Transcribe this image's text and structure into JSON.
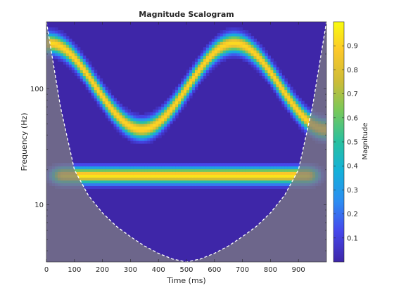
{
  "chart_data": {
    "type": "heatmap",
    "title": "Magnitude Scalogram",
    "xlabel": "Time (ms)",
    "ylabel": "Frequency (Hz)",
    "colorbar_label": "Magnitude",
    "colormap": "parula",
    "xlim": [
      0,
      1000
    ],
    "ylim": [
      3.2,
      380
    ],
    "yscale": "log",
    "clim": [
      0,
      1
    ],
    "x_ticks": [
      0,
      100,
      200,
      300,
      400,
      500,
      600,
      700,
      800,
      900
    ],
    "x_tick_labels": [
      "0",
      "100",
      "200",
      "300",
      "400",
      "500",
      "600",
      "700",
      "800",
      "900"
    ],
    "y_ticks": [
      10,
      100
    ],
    "y_tick_labels": [
      "10",
      "100"
    ],
    "colorbar_ticks": [
      0.1,
      0.2,
      0.3,
      0.4,
      0.5,
      0.6,
      0.7,
      0.8,
      0.9
    ],
    "colorbar_tick_labels": [
      "0.1",
      "0.2",
      "0.3",
      "0.4",
      "0.5",
      "0.6",
      "0.7",
      "0.8",
      "0.9"
    ],
    "components": [
      {
        "kind": "constant-tone",
        "frequency_hz": 18,
        "t_start_ms": 60,
        "t_end_ms": 930,
        "peak_magnitude": 0.95
      },
      {
        "kind": "sinusoidal-fm",
        "max_frequency_hz": 250,
        "min_frequency_hz": 45,
        "min_at_ms": 340,
        "max_at_ms": [
          0,
          670
        ],
        "peak_magnitude": 0.92
      }
    ],
    "cone_of_influence": {
      "x": [
        0,
        50,
        100,
        150,
        200,
        250,
        300,
        350,
        400,
        450,
        500,
        550,
        600,
        650,
        700,
        750,
        800,
        850,
        900,
        950,
        1000
      ],
      "frequency_hz": [
        380,
        70,
        20,
        12,
        8.5,
        6.5,
        5.3,
        4.4,
        3.8,
        3.4,
        3.2,
        3.4,
        3.8,
        4.4,
        5.3,
        6.5,
        8.5,
        12,
        20,
        70,
        380
      ]
    },
    "colors": {
      "background": "#3e26a8",
      "coi_shade": "#808080",
      "coi_line": "#ffffff"
    }
  }
}
